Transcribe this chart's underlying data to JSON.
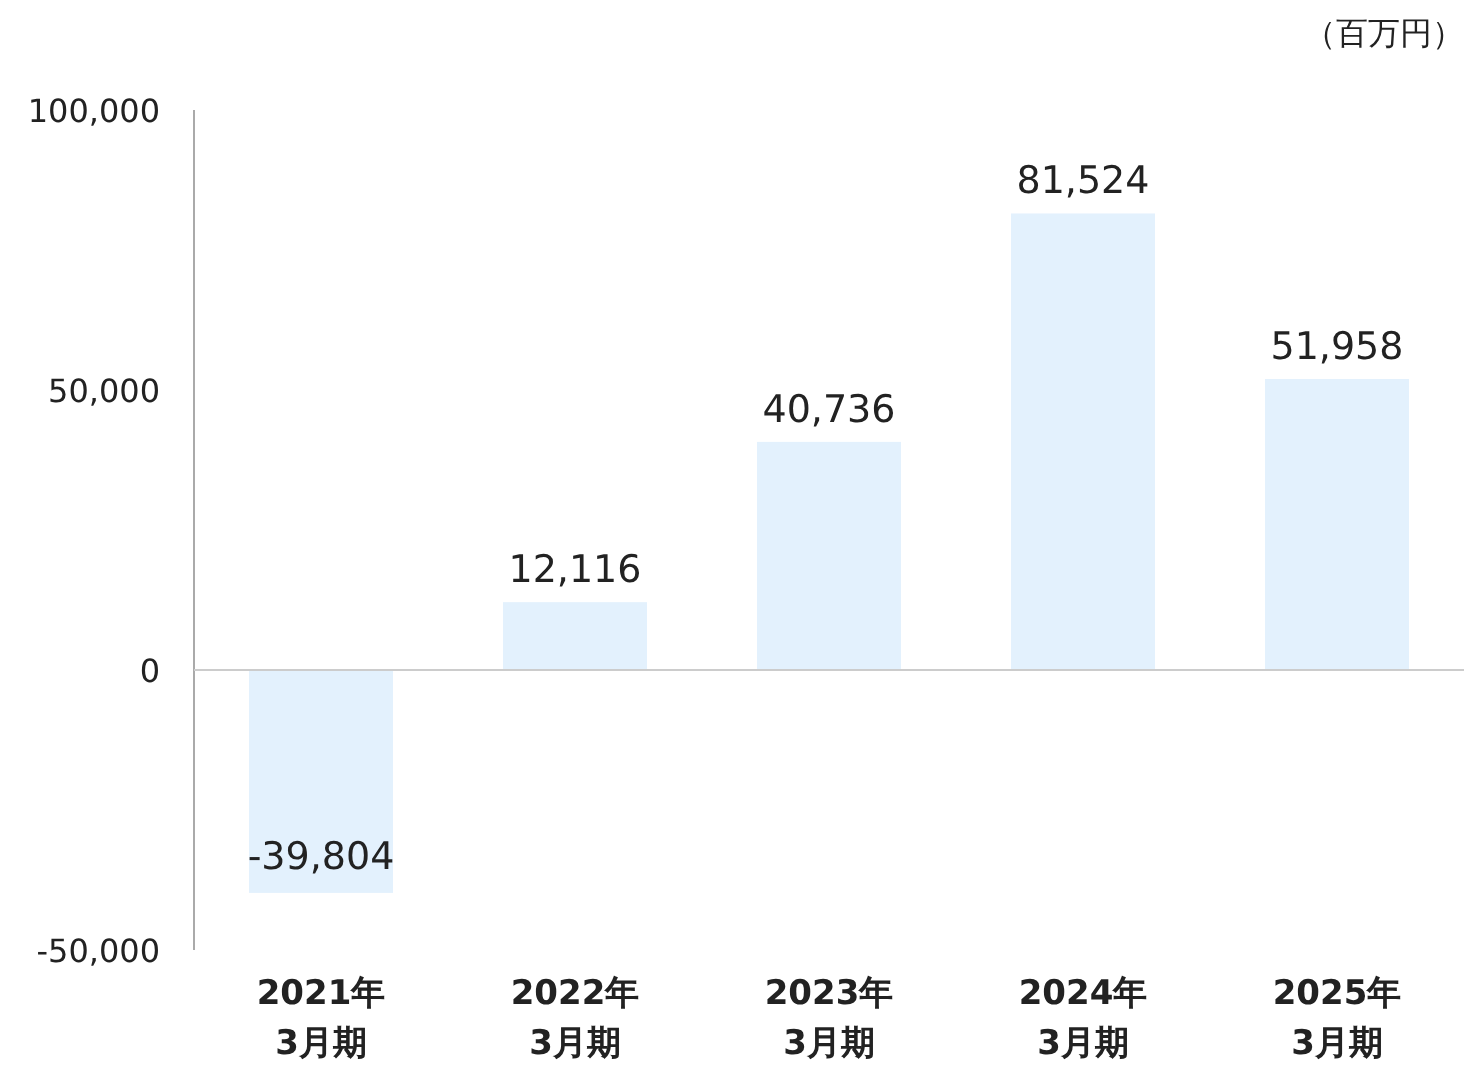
{
  "chart_data": {
    "type": "bar",
    "ylabel": "（百万円）",
    "categories": [
      "2021年\n3月期",
      "2022年\n3月期",
      "2023年\n3月期",
      "2024年\n3月期",
      "2025年\n3月期"
    ],
    "values": [
      -39804,
      12116,
      40736,
      81524,
      51958
    ],
    "color": "#e3f1fd",
    "ylim": [
      -50000,
      100000
    ],
    "yticks": [
      {
        "value": -50000,
        "label": "-50,000"
      },
      {
        "value": 0,
        "label": "0"
      },
      {
        "value": 50000,
        "label": "50,000"
      },
      {
        "value": 100000,
        "label": "100,000"
      }
    ],
    "value_labels": [
      "-39,804",
      "12,116",
      "40,736",
      "81,524",
      "51,958"
    ]
  }
}
